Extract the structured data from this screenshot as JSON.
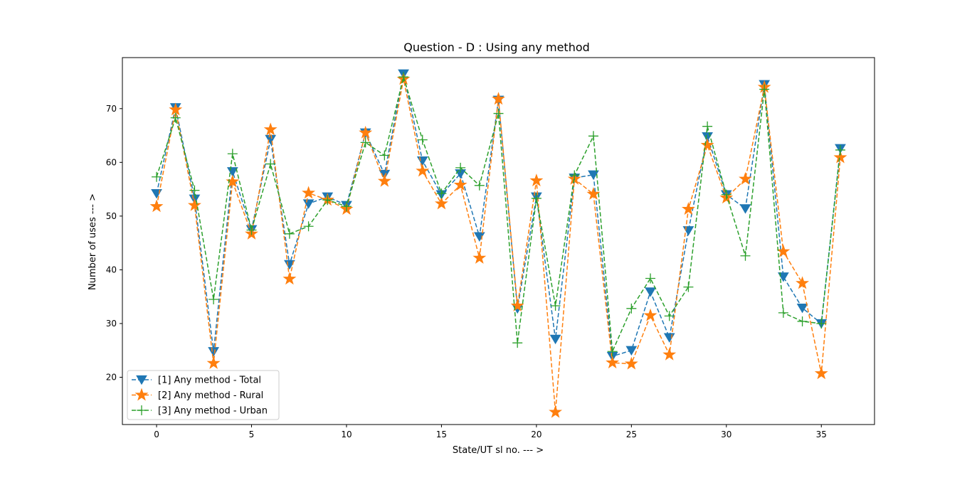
{
  "chart_data": {
    "type": "line",
    "title": "Question - D : Using any method",
    "xlabel": "State/UT sl no. --- >",
    "ylabel": "Number of uses --- >",
    "xlim": [
      -1.8,
      37.8
    ],
    "ylim": [
      11.2,
      79.5
    ],
    "xticks": [
      0,
      5,
      10,
      15,
      20,
      25,
      30,
      35
    ],
    "yticks": [
      20,
      30,
      40,
      50,
      60,
      70
    ],
    "grid": false,
    "legend_position": "lower-left",
    "x": [
      0,
      1,
      2,
      3,
      4,
      5,
      6,
      7,
      8,
      9,
      10,
      11,
      12,
      13,
      14,
      15,
      16,
      17,
      18,
      19,
      20,
      21,
      22,
      23,
      24,
      25,
      26,
      27,
      28,
      29,
      30,
      31,
      32,
      33,
      34,
      35,
      36
    ],
    "series": [
      {
        "name": "[1] Any method - Total",
        "color": "#1f77b4",
        "marker": "triangle-down",
        "values": [
          54.2,
          70.2,
          53.2,
          24.8,
          58.3,
          47.5,
          64.3,
          41.0,
          52.3,
          53.6,
          52.0,
          65.5,
          57.8,
          76.5,
          60.3,
          54.0,
          57.9,
          46.2,
          71.6,
          32.8,
          53.6,
          27.1,
          57.1,
          57.7,
          23.9,
          25.0,
          35.9,
          27.4,
          47.3,
          64.8,
          54.0,
          51.4,
          74.5,
          38.7,
          32.9,
          30.0,
          62.6
        ]
      },
      {
        "name": "[2] Any method - Rural",
        "color": "#ff7f0e",
        "marker": "star",
        "values": [
          51.8,
          69.8,
          52.0,
          22.6,
          56.4,
          46.7,
          66.1,
          38.3,
          54.3,
          53.0,
          51.3,
          65.5,
          56.5,
          75.5,
          58.4,
          52.3,
          55.8,
          42.2,
          71.8,
          33.3,
          56.6,
          13.5,
          56.9,
          54.1,
          22.7,
          22.5,
          31.5,
          24.2,
          51.3,
          63.2,
          53.4,
          56.9,
          74.0,
          43.4,
          37.5,
          20.7,
          60.9
        ]
      },
      {
        "name": "[3] Any method - Urban",
        "color": "#2ca02c",
        "marker": "plus",
        "values": [
          57.3,
          68.3,
          54.8,
          34.5,
          61.6,
          47.4,
          59.7,
          46.7,
          48.1,
          53.0,
          51.8,
          63.7,
          61.3,
          75.9,
          64.2,
          54.2,
          59.0,
          55.7,
          69.1,
          26.4,
          53.3,
          33.3,
          57.6,
          64.9,
          24.8,
          32.8,
          38.4,
          31.4,
          36.8,
          66.7,
          54.0,
          42.6,
          73.6,
          32.0,
          30.4,
          30.0,
          62.3
        ]
      }
    ]
  }
}
